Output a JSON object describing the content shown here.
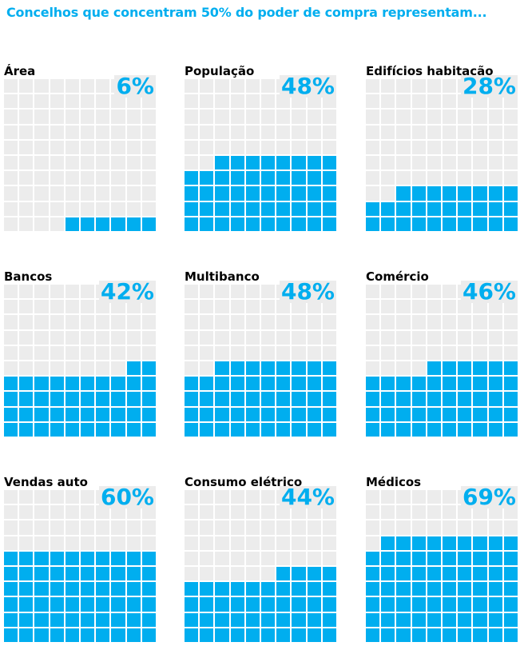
{
  "header": {
    "title": "Concelhos que concentram 50% do poder de compra representam..."
  },
  "colors": {
    "accent": "#00aeef",
    "empty_cell": "#ececec",
    "label": "#000000"
  },
  "chart_data": {
    "type": "waffle",
    "title": "Concelhos que concentram 50% do poder de compra representam...",
    "grid": "10x10",
    "panels": [
      {
        "label": "Área",
        "value": 6,
        "display": "6%"
      },
      {
        "label": "População",
        "value": 48,
        "display": "48%"
      },
      {
        "label": "Edifícios habitação",
        "value": 28,
        "display": "28%"
      },
      {
        "label": "Bancos",
        "value": 42,
        "display": "42%"
      },
      {
        "label": "Multibanco",
        "value": 48,
        "display": "48%"
      },
      {
        "label": "Comércio",
        "value": 46,
        "display": "46%"
      },
      {
        "label": "Vendas auto",
        "value": 60,
        "display": "60%"
      },
      {
        "label": "Consumo elétrico",
        "value": 44,
        "display": "44%"
      },
      {
        "label": "Médicos",
        "value": 69,
        "display": "69%"
      }
    ]
  }
}
